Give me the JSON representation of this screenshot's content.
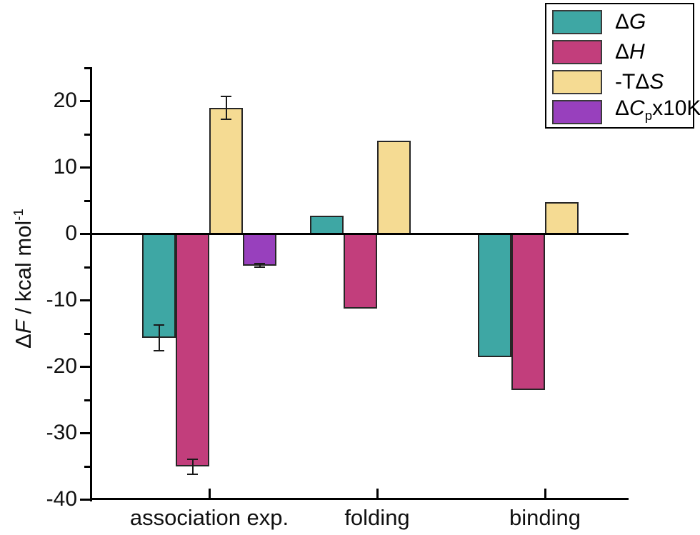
{
  "chart_data": {
    "type": "bar",
    "title": "",
    "categories": [
      "association exp.",
      "folding",
      "binding"
    ],
    "series": [
      {
        "name": "ΔG",
        "color": "#3EA7A4",
        "values": [
          -15.7,
          2.7,
          -18.6
        ],
        "errors": [
          1.9,
          null,
          null
        ]
      },
      {
        "name": "ΔH",
        "color": "#C23E7C",
        "values": [
          -35.1,
          -11.3,
          -23.5
        ],
        "errors": [
          1.1,
          null,
          null
        ]
      },
      {
        "name": "-TΔS",
        "color": "#F5DB93",
        "values": [
          18.9,
          14.0,
          4.7
        ],
        "errors": [
          1.7,
          null,
          null
        ]
      },
      {
        "name": "ΔCp x10K",
        "color": "#9840BD",
        "values": [
          -4.8,
          null,
          null
        ],
        "errors": [
          0.3,
          null,
          null
        ]
      }
    ],
    "xlabel": "",
    "ylabel": "ΔF / kcal mol-1",
    "ylim": [
      -40,
      25
    ],
    "y_major_ticks": [
      20,
      10,
      0,
      -10,
      -20,
      -30,
      -40
    ],
    "y_minor_ticks": [
      25,
      15,
      5,
      -5,
      -15,
      -25,
      -35
    ],
    "grid": false,
    "legend_position": "top-right",
    "bar_outline_color": "#262626",
    "error_bar_color": "#1a1a1a",
    "axis_color": "#000000"
  },
  "y_axis_label_parts": [
    {
      "text": "Δ"
    },
    {
      "text": "F",
      "style": "italic"
    },
    {
      "text": " / kcal mol"
    },
    {
      "text": "-1",
      "style": "sup"
    }
  ],
  "legend": {
    "items": [
      {
        "color": "#3EA7A4",
        "parts": [
          {
            "text": "Δ"
          },
          {
            "text": "G",
            "style": "italic"
          }
        ]
      },
      {
        "color": "#C23E7C",
        "parts": [
          {
            "text": "Δ"
          },
          {
            "text": "H",
            "style": "italic"
          }
        ]
      },
      {
        "color": "#F5DB93",
        "parts": [
          {
            "text": "-TΔ"
          },
          {
            "text": "S",
            "style": "italic"
          }
        ]
      },
      {
        "color": "#9840BD",
        "parts": [
          {
            "text": "Δ"
          },
          {
            "text": "C",
            "style": "italic"
          },
          {
            "text": "p",
            "style": "sub"
          },
          {
            "text": "x10K"
          }
        ]
      }
    ]
  }
}
